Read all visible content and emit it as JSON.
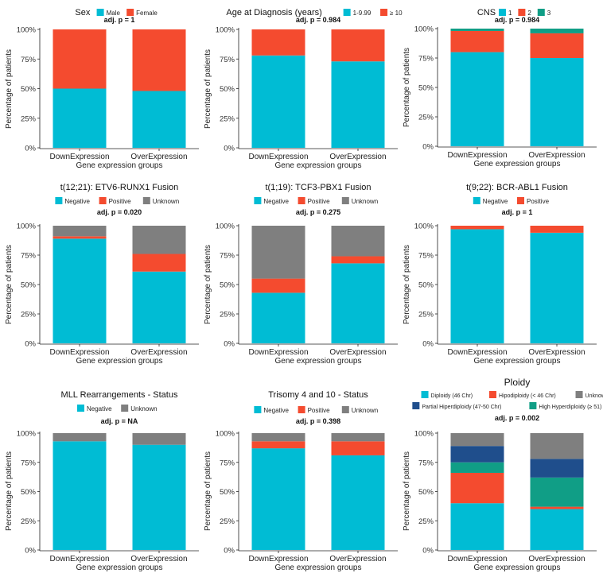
{
  "colors": {
    "cyan": "#00BCD4",
    "red": "#F44B2F",
    "gray": "#7F7F7F",
    "teal": "#109E86",
    "navy": "#1F4E8C"
  },
  "common": {
    "ylabel": "Percentage of patients",
    "xlabel": "Gene expression groups",
    "ytick_labels": [
      "0%",
      "25%",
      "50%",
      "75%",
      "100%"
    ],
    "categories": [
      "DownExpression",
      "OverExpression"
    ]
  },
  "chart_data": [
    {
      "type": "bar",
      "stacked": true,
      "title": "Sex",
      "legend_inline": true,
      "pvalue": "adj. p = 1",
      "categories": [
        "DownExpression",
        "OverExpression"
      ],
      "series": [
        {
          "name": "Male",
          "color": "cyan",
          "values": [
            50,
            48
          ]
        },
        {
          "name": "Female",
          "color": "red",
          "values": [
            50,
            52
          ]
        }
      ],
      "ylim": [
        0,
        100
      ],
      "xlabel": "Gene expression groups",
      "ylabel": "Percentage of patients"
    },
    {
      "type": "bar",
      "stacked": true,
      "title": "Age at Diagnosis (years)",
      "legend_inline": true,
      "pvalue": "adj. p = 0.984",
      "categories": [
        "DownExpression",
        "OverExpression"
      ],
      "series": [
        {
          "name": "1-9.99",
          "color": "cyan",
          "values": [
            78,
            73
          ]
        },
        {
          "name": "≥ 10",
          "color": "red",
          "values": [
            22,
            27
          ]
        }
      ],
      "ylim": [
        0,
        100
      ],
      "xlabel": "Gene expression groups",
      "ylabel": "Percentage of patients"
    },
    {
      "type": "bar",
      "stacked": true,
      "title": "CNS",
      "legend_inline": true,
      "pvalue": "adj. p = 0.984",
      "categories": [
        "DownExpression",
        "OverExpression"
      ],
      "series": [
        {
          "name": "1",
          "color": "cyan",
          "values": [
            80,
            75
          ]
        },
        {
          "name": "2",
          "color": "red",
          "values": [
            18,
            21
          ]
        },
        {
          "name": "3",
          "color": "teal",
          "values": [
            2,
            4
          ]
        }
      ],
      "ylim": [
        0,
        100
      ],
      "xlabel": "Gene expression groups",
      "ylabel": "Percentage of patients"
    },
    {
      "type": "bar",
      "stacked": true,
      "title": "t(12;21): ETV6-RUNX1 Fusion",
      "pvalue": "adj. p = 0.020",
      "categories": [
        "DownExpression",
        "OverExpression"
      ],
      "series": [
        {
          "name": "Negative",
          "color": "cyan",
          "values": [
            89,
            61
          ]
        },
        {
          "name": "Positive",
          "color": "red",
          "values": [
            2,
            15
          ]
        },
        {
          "name": "Unknown",
          "color": "gray",
          "values": [
            9,
            24
          ]
        }
      ],
      "ylim": [
        0,
        100
      ],
      "xlabel": "Gene expression groups",
      "ylabel": "Percentage of patients"
    },
    {
      "type": "bar",
      "stacked": true,
      "title": "t(1;19): TCF3-PBX1 Fusion",
      "pvalue": "adj. p = 0.275",
      "categories": [
        "DownExpression",
        "OverExpression"
      ],
      "series": [
        {
          "name": "Negative",
          "color": "cyan",
          "values": [
            43,
            68
          ]
        },
        {
          "name": "Positive",
          "color": "red",
          "values": [
            12,
            6
          ]
        },
        {
          "name": "Unknown",
          "color": "gray",
          "values": [
            45,
            26
          ]
        }
      ],
      "ylim": [
        0,
        100
      ],
      "xlabel": "Gene expression groups",
      "ylabel": "Percentage of patients"
    },
    {
      "type": "bar",
      "stacked": true,
      "title": "t(9;22): BCR-ABL1 Fusion",
      "pvalue": "adj. p = 1",
      "categories": [
        "DownExpression",
        "OverExpression"
      ],
      "series": [
        {
          "name": "Negative",
          "color": "cyan",
          "values": [
            97,
            94
          ]
        },
        {
          "name": "Positive",
          "color": "red",
          "values": [
            3,
            6
          ]
        }
      ],
      "ylim": [
        0,
        100
      ],
      "xlabel": "Gene expression groups",
      "ylabel": "Percentage of patients"
    },
    {
      "type": "bar",
      "stacked": true,
      "title": "MLL Rearrangements - Status",
      "pvalue": "adj. p = NA",
      "categories": [
        "DownExpression",
        "OverExpression"
      ],
      "series": [
        {
          "name": "Negative",
          "color": "cyan",
          "values": [
            93,
            90
          ]
        },
        {
          "name": "Unknown",
          "color": "gray",
          "values": [
            7,
            10
          ]
        }
      ],
      "ylim": [
        0,
        100
      ],
      "xlabel": "Gene expression groups",
      "ylabel": "Percentage of patients"
    },
    {
      "type": "bar",
      "stacked": true,
      "title": "Trisomy 4 and 10 - Status",
      "pvalue": "adj. p = 0.398",
      "categories": [
        "DownExpression",
        "OverExpression"
      ],
      "series": [
        {
          "name": "Negative",
          "color": "cyan",
          "values": [
            87,
            81
          ]
        },
        {
          "name": "Positive",
          "color": "red",
          "values": [
            6,
            12
          ]
        },
        {
          "name": "Unknown",
          "color": "gray",
          "values": [
            7,
            7
          ]
        }
      ],
      "ylim": [
        0,
        100
      ],
      "xlabel": "Gene expression groups",
      "ylabel": "Percentage of patients"
    },
    {
      "type": "bar",
      "stacked": true,
      "title": "Ploidy",
      "pvalue": "adj. p = 0.002",
      "categories": [
        "DownExpression",
        "OverExpression"
      ],
      "series": [
        {
          "name": "Diploidy (46 Chr)",
          "color": "cyan",
          "values": [
            40,
            35
          ]
        },
        {
          "name": "Hipodiploidy (< 46 Chr)",
          "color": "red",
          "values": [
            26,
            2
          ]
        },
        {
          "name": "High Hyperdiploidy (≥ 51)",
          "color": "teal",
          "values": [
            9,
            25
          ]
        },
        {
          "name": "Partial Hiperdiploidy (47-50 Chr)",
          "color": "navy",
          "values": [
            14,
            16
          ]
        },
        {
          "name": "Unknown",
          "color": "gray",
          "values": [
            11,
            22
          ]
        }
      ],
      "legend_order": [
        0,
        1,
        4,
        3,
        2
      ],
      "ylim": [
        0,
        100
      ],
      "xlabel": "Gene expression groups",
      "ylabel": "Percentage of patients"
    }
  ]
}
